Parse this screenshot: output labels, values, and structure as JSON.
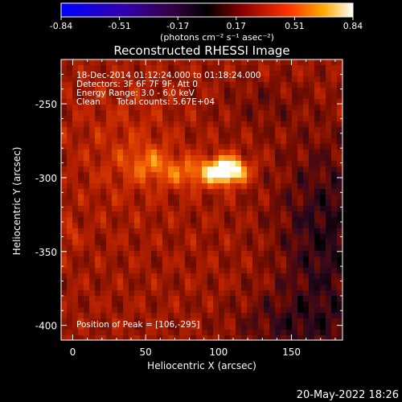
{
  "colorbar": {
    "ticks": [
      "-0.84",
      "-0.51",
      "-0.17",
      "0.17",
      "0.51",
      "0.84"
    ],
    "range": [
      -0.84,
      0.84
    ],
    "units_label": "(photons cm⁻² s⁻¹ asec⁻²)"
  },
  "chart_data": {
    "type": "heatmap",
    "title": "Reconstructed RHESSI Image",
    "xlabel": "Heliocentric X (arcsec)",
    "ylabel": "Heliocentric Y (arcsec)",
    "xlim": [
      -8,
      185
    ],
    "ylim": [
      -410,
      -220
    ],
    "xticks": [
      "0",
      "50",
      "100",
      "150"
    ],
    "xtick_values": [
      0,
      50,
      100,
      150
    ],
    "yticks": [
      "-250",
      "-300",
      "-350",
      "-400"
    ],
    "ytick_values": [
      -250,
      -300,
      -350,
      -400
    ],
    "colormap": "hot (black-purple-blue to red-orange-yellow-white)",
    "peak_position": [
      106,
      -295
    ],
    "annotations": {
      "time_range": "18-Dec-2014 01:12:24.000 to 01:18:24.000",
      "detectors": "Detectors: 3F 6F 7F 9F, Att 0",
      "energy": "Energy Range: 3.0 - 6.0 keV",
      "method": "Clean",
      "counts": "Total counts: 5.67E+04",
      "peak": "Position of Peak = [106,-295]"
    }
  },
  "footer": {
    "date": "20-May-2022 18:26"
  }
}
